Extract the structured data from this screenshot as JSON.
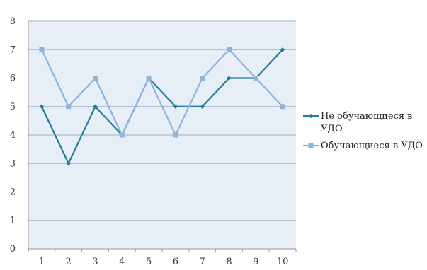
{
  "chart_data": {
    "type": "line",
    "x": [
      1,
      2,
      3,
      4,
      5,
      6,
      7,
      8,
      9,
      10
    ],
    "ylim": [
      0,
      8
    ],
    "yticks": [
      0,
      1,
      2,
      3,
      4,
      5,
      6,
      7,
      8
    ],
    "grid": true,
    "legend_position": "right",
    "series": [
      {
        "name": "Не обучающиеся в УДО",
        "legend_lines": [
          "Не обучающиеся в",
          "УДО"
        ],
        "color": "#1f7f99",
        "marker": "diamond",
        "values": [
          5,
          3,
          5,
          4,
          6,
          5,
          5,
          6,
          6,
          7
        ]
      },
      {
        "name": "Обучающиеся в УДО",
        "legend_lines": [
          "Обучающиеся в УДО"
        ],
        "color": "#8db4dd",
        "marker": "square",
        "values": [
          7,
          5,
          6,
          4,
          6,
          4,
          6,
          7,
          6,
          5
        ]
      }
    ],
    "colors": {
      "plot_background": "#e8eef6",
      "gridline": "#9fb2c6",
      "axis": "#999999"
    }
  }
}
